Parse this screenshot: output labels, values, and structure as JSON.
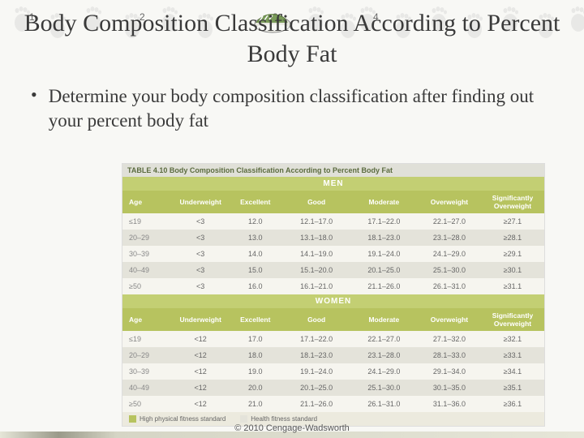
{
  "markers": [
    "1",
    "2",
    "3",
    "4"
  ],
  "marker_positions": [
    36,
    172,
    336,
    460
  ],
  "title": "Body Composition Classification According to Percent Body Fat",
  "bullet": "Determine your body composition classification after finding out your percent body fat",
  "table": {
    "title": "TABLE 4.10 Body Composition Classification According to Percent Body Fat",
    "columns": [
      "Age",
      "Underweight",
      "Excellent",
      "Good",
      "Moderate",
      "Overweight",
      "Significantly Overweight"
    ],
    "col_widths": [
      "12%",
      "13%",
      "13%",
      "16%",
      "16%",
      "15%",
      "15%"
    ],
    "sections": [
      {
        "header": "MEN",
        "rows": [
          [
            "≤19",
            "<3",
            "12.0",
            "12.1–17.0",
            "17.1–22.0",
            "22.1–27.0",
            "≥27.1"
          ],
          [
            "20–29",
            "<3",
            "13.0",
            "13.1–18.0",
            "18.1–23.0",
            "23.1–28.0",
            "≥28.1"
          ],
          [
            "30–39",
            "<3",
            "14.0",
            "14.1–19.0",
            "19.1–24.0",
            "24.1–29.0",
            "≥29.1"
          ],
          [
            "40–49",
            "<3",
            "15.0",
            "15.1–20.0",
            "20.1–25.0",
            "25.1–30.0",
            "≥30.1"
          ],
          [
            "≥50",
            "<3",
            "16.0",
            "16.1–21.0",
            "21.1–26.0",
            "26.1–31.0",
            "≥31.1"
          ]
        ]
      },
      {
        "header": "WOMEN",
        "rows": [
          [
            "≤19",
            "<12",
            "17.0",
            "17.1–22.0",
            "22.1–27.0",
            "27.1–32.0",
            "≥32.1"
          ],
          [
            "20–29",
            "<12",
            "18.0",
            "18.1–23.0",
            "23.1–28.0",
            "28.1–33.0",
            "≥33.1"
          ],
          [
            "30–39",
            "<12",
            "19.0",
            "19.1–24.0",
            "24.1–29.0",
            "29.1–34.0",
            "≥34.1"
          ],
          [
            "40–49",
            "<12",
            "20.0",
            "20.1–25.0",
            "25.1–30.0",
            "30.1–35.0",
            "≥35.1"
          ],
          [
            "≥50",
            "<12",
            "21.0",
            "21.1–26.0",
            "26.1–31.0",
            "31.1–36.0",
            "≥36.1"
          ]
        ]
      }
    ],
    "legend": [
      {
        "color": "#b7c35f",
        "label": "High physical fitness standard"
      },
      {
        "color": "#e4e3da",
        "label": "Health fitness standard"
      }
    ]
  },
  "copyright": "© 2010 Cengage-Wadsworth",
  "colors": {
    "header_bg": "#b7c35f",
    "section_bg": "#c3cf73",
    "row_even": "#e4e3da",
    "row_odd": "#f6f5ef",
    "title_bg": "#e0e0d8"
  }
}
